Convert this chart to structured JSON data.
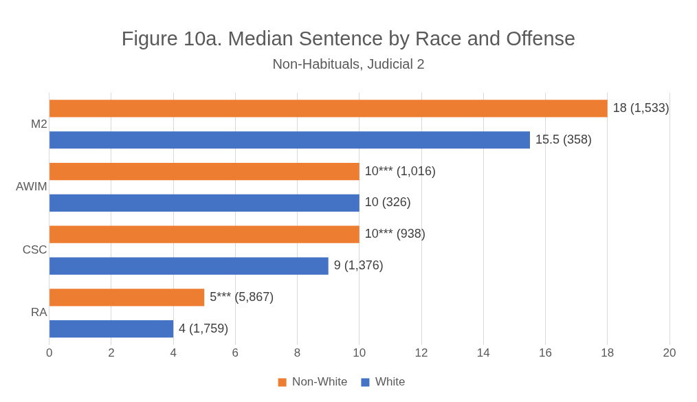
{
  "chart_data": {
    "type": "bar",
    "orientation": "horizontal",
    "title": "Figure 10a. Median Sentence by Race and Offense",
    "subtitle": "Non-Habituals, Judicial 2",
    "categories": [
      "M2",
      "AWIM",
      "CSC",
      "RA"
    ],
    "series": [
      {
        "name": "Non-White",
        "color": "#ed7d31",
        "values": [
          18,
          10,
          10,
          5
        ],
        "value_labels": [
          "18 (1,533)",
          "10*** (1,016)",
          "10*** (938)",
          "5*** (5,867)"
        ]
      },
      {
        "name": "White",
        "color": "#4472c4",
        "values": [
          15.5,
          10,
          9,
          4
        ],
        "value_labels": [
          "15.5 (358)",
          "10 (326)",
          "9 (1,376)",
          "4 (1,759)"
        ]
      }
    ],
    "xlim": [
      0,
      20
    ],
    "xticks": [
      0,
      2,
      4,
      6,
      8,
      10,
      12,
      14,
      16,
      18,
      20
    ],
    "grid": "x",
    "legend": "bottom"
  }
}
